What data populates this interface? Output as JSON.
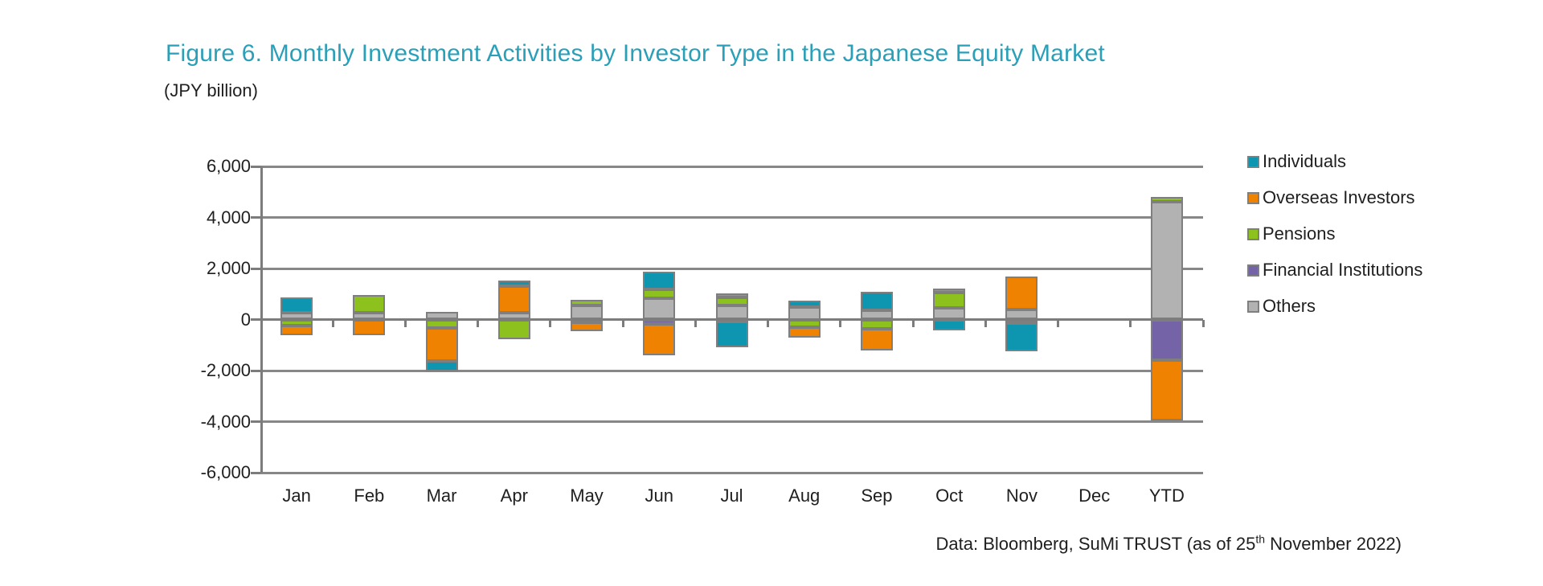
{
  "title": "Figure 6. Monthly Investment Activities by Investor Type in the Japanese Equity Market",
  "unit_label": "(JPY billion)",
  "source": {
    "before_sup": "Data: Bloomberg, SuMi TRUST (as of 25",
    "sup": "th",
    "after_sup": " November 2022)"
  },
  "colors": {
    "title_accent": "#2A9FB8",
    "grid": "#878787",
    "segment_border": "#7f7f7f"
  },
  "chart_data": {
    "type": "bar",
    "stacked": true,
    "grid": true,
    "legend_position": "right",
    "title": "Figure 6. Monthly Investment Activities by Investor Type in the Japanese Equity Market",
    "ylabel": "(JPY billion)",
    "ylim": [
      -6000,
      6000
    ],
    "ytick_step": 2000,
    "ytick_labels": [
      "6,000",
      "4,000",
      "2,000",
      "0",
      "-2,000",
      "-4,000",
      "-6,000"
    ],
    "categories": [
      "Jan",
      "Feb",
      "Mar",
      "Apr",
      "May",
      "Jun",
      "Jul",
      "Aug",
      "Sep",
      "Oct",
      "Nov",
      "Dec",
      "YTD"
    ],
    "series": [
      {
        "name": "Individuals",
        "color": "#0E96B1",
        "values": [
          600,
          0,
          -420,
          230,
          0,
          700,
          -1000,
          250,
          750,
          -420,
          -1100,
          0,
          0
        ]
      },
      {
        "name": "Overseas Investors",
        "color": "#EF8200",
        "values": [
          -350,
          -600,
          -1300,
          1050,
          -350,
          -1250,
          160,
          -400,
          -850,
          150,
          1300,
          0,
          -2350
        ]
      },
      {
        "name": "Pensions",
        "color": "#8DC21E",
        "values": [
          -250,
          680,
          -320,
          -780,
          230,
          320,
          320,
          -300,
          -350,
          600,
          0,
          0,
          200
        ]
      },
      {
        "name": "Financial Institutions",
        "color": "#7463A6",
        "values": [
          0,
          0,
          0,
          0,
          -120,
          -160,
          -80,
          0,
          0,
          0,
          -150,
          0,
          -1600
        ]
      },
      {
        "name": "Others",
        "color": "#B2B2B2",
        "values": [
          280,
          270,
          300,
          260,
          550,
          850,
          550,
          500,
          350,
          450,
          400,
          0,
          4600
        ]
      }
    ],
    "stack_order_from_zero": [
      "Others",
      "Financial Institutions",
      "Pensions",
      "Overseas Investors",
      "Individuals"
    ]
  }
}
